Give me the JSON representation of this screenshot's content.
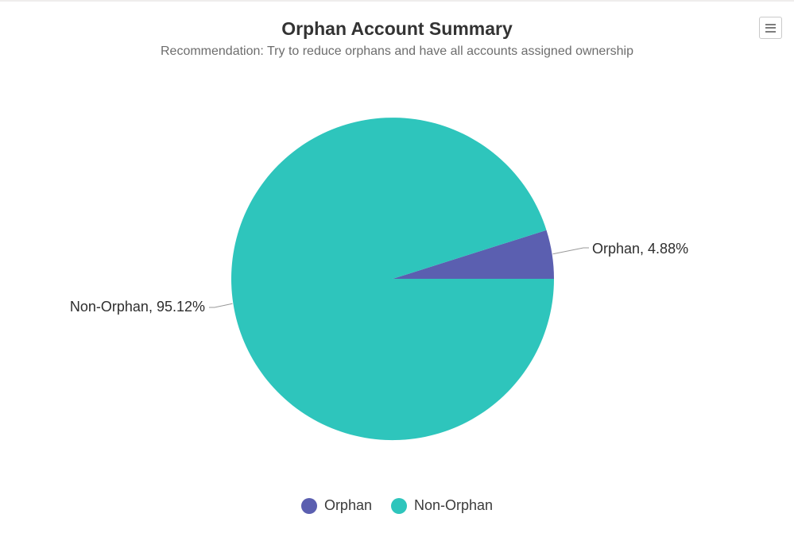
{
  "header": {
    "menu_button": {
      "icon": "hamburger-icon"
    }
  },
  "chart_data": {
    "type": "pie",
    "title": "Orphan Account Summary",
    "subtitle": "Recommendation: Try to reduce orphans and have all accounts assigned ownership",
    "slices": [
      {
        "name": "Orphan",
        "value": 4.88,
        "unit": "%",
        "label": "Orphan, 4.88%",
        "color": "#5b5fb0"
      },
      {
        "name": "Non-Orphan",
        "value": 95.12,
        "unit": "%",
        "label": "Non-Orphan, 95.12%",
        "color": "#2ec5bc"
      }
    ],
    "legend": [
      {
        "label": "Orphan",
        "color": "#5b5fb0"
      },
      {
        "label": "Non-Orphan",
        "color": "#2ec5bc"
      }
    ],
    "legend_position": "bottom",
    "start_angle_deg": 72.43,
    "connector_color": "#999999"
  }
}
